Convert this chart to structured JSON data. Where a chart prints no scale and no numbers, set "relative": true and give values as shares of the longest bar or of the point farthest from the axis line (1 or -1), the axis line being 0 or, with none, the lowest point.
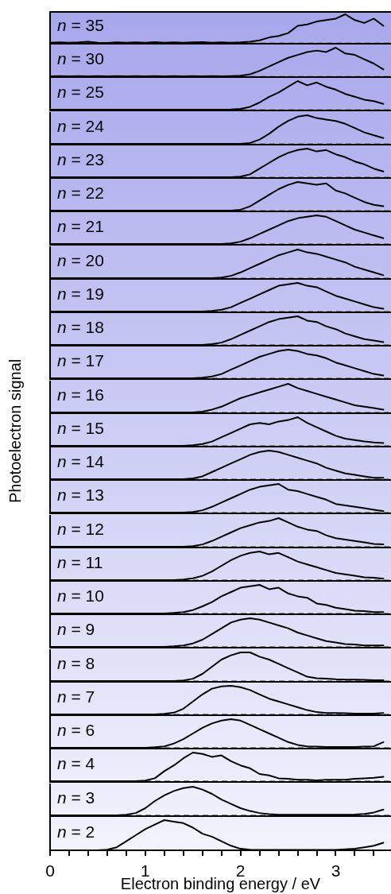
{
  "chart_data": [
    {
      "type": "line",
      "annotations": [
        "n = 35"
      ],
      "x": [
        0,
        0.1,
        0.2,
        0.3,
        0.4,
        0.5,
        0.6,
        0.7,
        0.8,
        0.9,
        1,
        1.1,
        1.2,
        1.3,
        1.4,
        1.5,
        1.6,
        1.7,
        1.8,
        1.9,
        2,
        2.1,
        2.2,
        2.3,
        2.4,
        2.5,
        2.6,
        2.7,
        2.8,
        2.9,
        3,
        3.1,
        3.2,
        3.3,
        3.4,
        3.5
      ],
      "values": [
        0.02,
        0.03,
        0.02,
        0.03,
        0.05,
        0.02,
        0.01,
        0.03,
        0.02,
        0.03,
        0.02,
        0.04,
        0.02,
        0.03,
        0.02,
        0.03,
        0.04,
        0.02,
        0.03,
        0.02,
        0.03,
        0.05,
        0.1,
        0.2,
        0.25,
        0.35,
        0.6,
        0.65,
        0.75,
        0.8,
        0.85,
        1,
        0.8,
        0.7,
        0.85,
        0.6
      ],
      "color": "#000000",
      "relative": true,
      "xlim": [
        0,
        3.58
      ],
      "ref_lines": [
        {
          "axis": "y",
          "value": 0,
          "color": "#888888",
          "line_style": "dashed"
        }
      ],
      "tick_labels": false
    },
    {
      "type": "line",
      "annotations": [
        "n = 30"
      ],
      "x": [
        0,
        0.1,
        0.2,
        0.3,
        0.4,
        0.5,
        0.6,
        0.7,
        0.8,
        0.9,
        1,
        1.1,
        1.2,
        1.3,
        1.4,
        1.5,
        1.6,
        1.7,
        1.8,
        1.9,
        2,
        2.1,
        2.2,
        2.3,
        2.4,
        2.5,
        2.6,
        2.7,
        2.8,
        2.9,
        3,
        3.1,
        3.2,
        3.3,
        3.4,
        3.5
      ],
      "values": [
        0.01,
        0.02,
        0.01,
        0.02,
        0.01,
        0.02,
        0.01,
        0.02,
        0.01,
        0.02,
        0.01,
        0.02,
        0.01,
        0.02,
        0.01,
        0.02,
        0.01,
        0.02,
        0.01,
        0.02,
        0.03,
        0.08,
        0.2,
        0.35,
        0.5,
        0.65,
        0.75,
        0.85,
        0.9,
        0.85,
        1,
        0.8,
        0.75,
        0.6,
        0.45,
        0.25
      ],
      "color": "#000000",
      "relative": true,
      "xlim": [
        0,
        3.58
      ],
      "ref_lines": [
        {
          "axis": "y",
          "value": 0,
          "color": "#888888",
          "line_style": "dashed"
        }
      ],
      "tick_labels": false
    },
    {
      "type": "line",
      "annotations": [
        "n = 25"
      ],
      "x": [
        0,
        0.1,
        0.2,
        0.3,
        0.4,
        0.5,
        0.6,
        0.7,
        0.8,
        0.9,
        1,
        1.1,
        1.2,
        1.3,
        1.4,
        1.5,
        1.6,
        1.7,
        1.8,
        1.9,
        2,
        2.1,
        2.2,
        2.3,
        2.4,
        2.5,
        2.6,
        2.7,
        2.8,
        2.9,
        3,
        3.1,
        3.2,
        3.3,
        3.4,
        3.5
      ],
      "values": [
        0,
        0,
        0,
        0,
        0,
        0,
        0,
        0,
        0,
        0,
        0,
        0,
        0,
        0,
        0,
        0,
        0,
        0,
        0,
        0.01,
        0.03,
        0.1,
        0.25,
        0.45,
        0.6,
        0.8,
        1,
        0.85,
        0.95,
        0.8,
        0.7,
        0.55,
        0.45,
        0.35,
        0.3,
        0.2
      ],
      "color": "#000000",
      "relative": true,
      "xlim": [
        0,
        3.58
      ],
      "ref_lines": [
        {
          "axis": "y",
          "value": 0,
          "color": "#888888",
          "line_style": "dashed"
        }
      ],
      "tick_labels": false
    },
    {
      "type": "line",
      "annotations": [
        "n = 24"
      ],
      "x": [
        0,
        0.1,
        0.2,
        0.3,
        0.4,
        0.5,
        0.6,
        0.7,
        0.8,
        0.9,
        1,
        1.1,
        1.2,
        1.3,
        1.4,
        1.5,
        1.6,
        1.7,
        1.8,
        1.9,
        2,
        2.1,
        2.2,
        2.3,
        2.4,
        2.5,
        2.6,
        2.7,
        2.8,
        2.9,
        3,
        3.1,
        3.2,
        3.3,
        3.4,
        3.5
      ],
      "values": [
        0,
        0,
        0,
        0,
        0,
        0,
        0,
        0,
        0,
        0,
        0,
        0,
        0,
        0,
        0,
        0,
        0,
        0,
        0,
        0,
        0,
        0.03,
        0.15,
        0.35,
        0.6,
        0.8,
        0.95,
        1,
        0.9,
        0.85,
        0.8,
        0.7,
        0.55,
        0.4,
        0.3,
        0.2
      ],
      "color": "#000000",
      "relative": true,
      "xlim": [
        0,
        3.58
      ],
      "ref_lines": [
        {
          "axis": "y",
          "value": 0,
          "color": "#888888",
          "line_style": "dashed"
        }
      ],
      "tick_labels": false
    },
    {
      "type": "line",
      "annotations": [
        "n = 23"
      ],
      "x": [
        0,
        0.1,
        0.2,
        0.3,
        0.4,
        0.5,
        0.6,
        0.7,
        0.8,
        0.9,
        1,
        1.1,
        1.2,
        1.3,
        1.4,
        1.5,
        1.6,
        1.7,
        1.8,
        1.9,
        2,
        2.1,
        2.2,
        2.3,
        2.4,
        2.5,
        2.6,
        2.7,
        2.8,
        2.9,
        3,
        3.1,
        3.2,
        3.3,
        3.4,
        3.5
      ],
      "values": [
        0,
        0,
        0,
        0,
        0,
        0,
        0,
        0,
        0,
        0,
        0,
        0,
        0,
        0,
        0,
        0,
        0,
        0,
        0,
        0,
        0.02,
        0.1,
        0.3,
        0.5,
        0.7,
        0.85,
        0.95,
        1,
        0.9,
        0.95,
        0.8,
        0.7,
        0.55,
        0.45,
        0.3,
        0.2
      ],
      "color": "#000000",
      "relative": true,
      "xlim": [
        0,
        3.58
      ],
      "ref_lines": [
        {
          "axis": "y",
          "value": 0,
          "color": "#888888",
          "line_style": "dashed"
        }
      ],
      "tick_labels": false
    },
    {
      "type": "line",
      "annotations": [
        "n = 22"
      ],
      "x": [
        0,
        0.1,
        0.2,
        0.3,
        0.4,
        0.5,
        0.6,
        0.7,
        0.8,
        0.9,
        1,
        1.1,
        1.2,
        1.3,
        1.4,
        1.5,
        1.6,
        1.7,
        1.8,
        1.9,
        2,
        2.1,
        2.2,
        2.3,
        2.4,
        2.5,
        2.6,
        2.7,
        2.8,
        2.9,
        3,
        3.1,
        3.2,
        3.3,
        3.4,
        3.5
      ],
      "values": [
        0,
        0,
        0,
        0,
        0,
        0,
        0,
        0,
        0,
        0,
        0,
        0,
        0,
        0,
        0,
        0,
        0,
        0,
        0,
        0,
        0.03,
        0.15,
        0.35,
        0.55,
        0.75,
        0.9,
        1,
        0.95,
        0.9,
        0.95,
        0.7,
        0.6,
        0.45,
        0.3,
        0.2,
        0.15
      ],
      "color": "#000000",
      "relative": true,
      "xlim": [
        0,
        3.58
      ],
      "ref_lines": [
        {
          "axis": "y",
          "value": 0,
          "color": "#888888",
          "line_style": "dashed"
        }
      ],
      "tick_labels": false
    },
    {
      "type": "line",
      "annotations": [
        "n = 21"
      ],
      "x": [
        0,
        0.1,
        0.2,
        0.3,
        0.4,
        0.5,
        0.6,
        0.7,
        0.8,
        0.9,
        1,
        1.1,
        1.2,
        1.3,
        1.4,
        1.5,
        1.6,
        1.7,
        1.8,
        1.9,
        2,
        2.1,
        2.2,
        2.3,
        2.4,
        2.5,
        2.6,
        2.7,
        2.8,
        2.9,
        3,
        3.1,
        3.2,
        3.3,
        3.4,
        3.5
      ],
      "values": [
        0,
        0,
        0,
        0,
        0,
        0,
        0,
        0,
        0,
        0,
        0,
        0,
        0,
        0,
        0,
        0,
        0,
        0,
        0,
        0.02,
        0.08,
        0.2,
        0.35,
        0.5,
        0.65,
        0.8,
        0.9,
        0.95,
        1,
        0.95,
        0.8,
        0.65,
        0.5,
        0.4,
        0.3,
        0.2
      ],
      "color": "#000000",
      "relative": true,
      "xlim": [
        0,
        3.58
      ],
      "ref_lines": [
        {
          "axis": "y",
          "value": 0,
          "color": "#888888",
          "line_style": "dashed"
        }
      ],
      "tick_labels": false
    },
    {
      "type": "line",
      "annotations": [
        "n = 20"
      ],
      "x": [
        0,
        0.1,
        0.2,
        0.3,
        0.4,
        0.5,
        0.6,
        0.7,
        0.8,
        0.9,
        1,
        1.1,
        1.2,
        1.3,
        1.4,
        1.5,
        1.6,
        1.7,
        1.8,
        1.9,
        2,
        2.1,
        2.2,
        2.3,
        2.4,
        2.5,
        2.6,
        2.7,
        2.8,
        2.9,
        3,
        3.1,
        3.2,
        3.3,
        3.4,
        3.5
      ],
      "values": [
        0,
        0,
        0,
        0,
        0,
        0,
        0,
        0,
        0,
        0,
        0,
        0,
        0,
        0,
        0,
        0,
        0,
        0,
        0.02,
        0.08,
        0.2,
        0.35,
        0.5,
        0.65,
        0.8,
        0.9,
        1,
        0.9,
        0.85,
        0.75,
        0.65,
        0.55,
        0.4,
        0.3,
        0.2,
        0.1
      ],
      "color": "#000000",
      "relative": true,
      "xlim": [
        0,
        3.58
      ],
      "ref_lines": [
        {
          "axis": "y",
          "value": 0,
          "color": "#888888",
          "line_style": "dashed"
        }
      ],
      "tick_labels": false
    },
    {
      "type": "line",
      "annotations": [
        "n = 19"
      ],
      "x": [
        0,
        0.1,
        0.2,
        0.3,
        0.4,
        0.5,
        0.6,
        0.7,
        0.8,
        0.9,
        1,
        1.1,
        1.2,
        1.3,
        1.4,
        1.5,
        1.6,
        1.7,
        1.8,
        1.9,
        2,
        2.1,
        2.2,
        2.3,
        2.4,
        2.5,
        2.6,
        2.7,
        2.8,
        2.9,
        3,
        3.1,
        3.2,
        3.3,
        3.4,
        3.5
      ],
      "values": [
        0,
        0,
        0,
        0,
        0,
        0,
        0,
        0,
        0,
        0,
        0,
        0,
        0,
        0,
        0,
        0,
        0,
        0.02,
        0.06,
        0.15,
        0.3,
        0.45,
        0.6,
        0.75,
        0.9,
        0.95,
        1,
        0.9,
        0.85,
        0.7,
        0.55,
        0.45,
        0.35,
        0.25,
        0.15,
        0.1
      ],
      "color": "#000000",
      "relative": true,
      "xlim": [
        0,
        3.58
      ],
      "ref_lines": [
        {
          "axis": "y",
          "value": 0,
          "color": "#888888",
          "line_style": "dashed"
        }
      ],
      "tick_labels": false
    },
    {
      "type": "line",
      "annotations": [
        "n = 18"
      ],
      "x": [
        0,
        0.1,
        0.2,
        0.3,
        0.4,
        0.5,
        0.6,
        0.7,
        0.8,
        0.9,
        1,
        1.1,
        1.2,
        1.3,
        1.4,
        1.5,
        1.6,
        1.7,
        1.8,
        1.9,
        2,
        2.1,
        2.2,
        2.3,
        2.4,
        2.5,
        2.6,
        2.7,
        2.8,
        2.9,
        3,
        3.1,
        3.2,
        3.3,
        3.4,
        3.5
      ],
      "values": [
        0,
        0,
        0,
        0,
        0,
        0,
        0,
        0,
        0,
        0,
        0,
        0,
        0,
        0,
        0,
        0,
        0,
        0.03,
        0.08,
        0.2,
        0.35,
        0.5,
        0.65,
        0.8,
        0.9,
        0.95,
        1,
        0.85,
        0.8,
        0.65,
        0.55,
        0.4,
        0.3,
        0.2,
        0.15,
        0.1
      ],
      "color": "#000000",
      "relative": true,
      "xlim": [
        0,
        3.58
      ],
      "ref_lines": [
        {
          "axis": "y",
          "value": 0,
          "color": "#888888",
          "line_style": "dashed"
        }
      ],
      "tick_labels": false
    },
    {
      "type": "line",
      "annotations": [
        "n = 17"
      ],
      "x": [
        0,
        0.1,
        0.2,
        0.3,
        0.4,
        0.5,
        0.6,
        0.7,
        0.8,
        0.9,
        1,
        1.1,
        1.2,
        1.3,
        1.4,
        1.5,
        1.6,
        1.7,
        1.8,
        1.9,
        2,
        2.1,
        2.2,
        2.3,
        2.4,
        2.5,
        2.6,
        2.7,
        2.8,
        2.9,
        3,
        3.1,
        3.2,
        3.3,
        3.4,
        3.5
      ],
      "values": [
        0,
        0,
        0,
        0,
        0,
        0,
        0,
        0,
        0,
        0,
        0,
        0,
        0,
        0,
        0,
        0,
        0.02,
        0.06,
        0.15,
        0.3,
        0.45,
        0.6,
        0.75,
        0.85,
        0.95,
        1,
        0.95,
        0.85,
        0.8,
        0.7,
        0.55,
        0.45,
        0.35,
        0.25,
        0.15,
        0.1
      ],
      "color": "#000000",
      "relative": true,
      "xlim": [
        0,
        3.58
      ],
      "ref_lines": [
        {
          "axis": "y",
          "value": 0,
          "color": "#888888",
          "line_style": "dashed"
        }
      ],
      "tick_labels": false
    },
    {
      "type": "line",
      "annotations": [
        "n = 16"
      ],
      "x": [
        0,
        0.1,
        0.2,
        0.3,
        0.4,
        0.5,
        0.6,
        0.7,
        0.8,
        0.9,
        1,
        1.1,
        1.2,
        1.3,
        1.4,
        1.5,
        1.6,
        1.7,
        1.8,
        1.9,
        2,
        2.1,
        2.2,
        2.3,
        2.4,
        2.5,
        2.6,
        2.7,
        2.8,
        2.9,
        3,
        3.1,
        3.2,
        3.3,
        3.4,
        3.5
      ],
      "values": [
        0,
        0,
        0,
        0,
        0,
        0,
        0,
        0,
        0,
        0,
        0,
        0,
        0,
        0,
        0,
        0,
        0.03,
        0.1,
        0.2,
        0.35,
        0.5,
        0.6,
        0.7,
        0.8,
        0.9,
        1,
        0.85,
        0.75,
        0.65,
        0.55,
        0.45,
        0.35,
        0.25,
        0.2,
        0.15,
        0.1
      ],
      "color": "#000000",
      "relative": true,
      "xlim": [
        0,
        3.58
      ],
      "ref_lines": [
        {
          "axis": "y",
          "value": 0,
          "color": "#888888",
          "line_style": "dashed"
        }
      ],
      "tick_labels": false
    },
    {
      "type": "line",
      "annotations": [
        "n = 15"
      ],
      "x": [
        0,
        0.1,
        0.2,
        0.3,
        0.4,
        0.5,
        0.6,
        0.7,
        0.8,
        0.9,
        1,
        1.1,
        1.2,
        1.3,
        1.4,
        1.5,
        1.6,
        1.7,
        1.8,
        1.9,
        2,
        2.1,
        2.2,
        2.3,
        2.4,
        2.5,
        2.6,
        2.7,
        2.8,
        2.9,
        3,
        3.1,
        3.2,
        3.3,
        3.4,
        3.5
      ],
      "values": [
        0,
        0,
        0,
        0,
        0,
        0,
        0,
        0,
        0,
        0,
        0,
        0,
        0,
        0,
        0,
        0.02,
        0.06,
        0.15,
        0.3,
        0.45,
        0.6,
        0.75,
        0.8,
        0.75,
        0.85,
        0.9,
        1,
        0.8,
        0.65,
        0.5,
        0.35,
        0.25,
        0.2,
        0.15,
        0.12,
        0.1
      ],
      "color": "#000000",
      "relative": true,
      "xlim": [
        0,
        3.58
      ],
      "ref_lines": [
        {
          "axis": "y",
          "value": 0,
          "color": "#888888",
          "line_style": "dashed"
        }
      ],
      "tick_labels": false
    },
    {
      "type": "line",
      "annotations": [
        "n = 14"
      ],
      "x": [
        0,
        0.1,
        0.2,
        0.3,
        0.4,
        0.5,
        0.6,
        0.7,
        0.8,
        0.9,
        1,
        1.1,
        1.2,
        1.3,
        1.4,
        1.5,
        1.6,
        1.7,
        1.8,
        1.9,
        2,
        2.1,
        2.2,
        2.3,
        2.4,
        2.5,
        2.6,
        2.7,
        2.8,
        2.9,
        3,
        3.1,
        3.2,
        3.3,
        3.4,
        3.5
      ],
      "values": [
        0,
        0,
        0,
        0,
        0,
        0,
        0,
        0,
        0,
        0,
        0,
        0,
        0,
        0,
        0,
        0.03,
        0.1,
        0.25,
        0.4,
        0.55,
        0.7,
        0.85,
        0.95,
        1,
        0.95,
        0.85,
        0.75,
        0.65,
        0.55,
        0.4,
        0.3,
        0.2,
        0.15,
        0.1,
        0.05,
        0.05
      ],
      "color": "#000000",
      "relative": true,
      "xlim": [
        0,
        3.58
      ],
      "ref_lines": [
        {
          "axis": "y",
          "value": 0,
          "color": "#888888",
          "line_style": "dashed"
        }
      ],
      "tick_labels": false
    },
    {
      "type": "line",
      "ylabel": "Photoelectron signal",
      "annotations": [
        "n = 13"
      ],
      "x": [
        0,
        0.1,
        0.2,
        0.3,
        0.4,
        0.5,
        0.6,
        0.7,
        0.8,
        0.9,
        1,
        1.1,
        1.2,
        1.3,
        1.4,
        1.5,
        1.6,
        1.7,
        1.8,
        1.9,
        2,
        2.1,
        2.2,
        2.3,
        2.4,
        2.5,
        2.6,
        2.7,
        2.8,
        2.9,
        3,
        3.1,
        3.2,
        3.3,
        3.4,
        3.5
      ],
      "values": [
        0,
        0,
        0,
        0,
        0,
        0,
        0,
        0,
        0,
        0,
        0,
        0,
        0,
        0,
        0,
        0.02,
        0.08,
        0.2,
        0.35,
        0.5,
        0.65,
        0.8,
        0.9,
        0.95,
        1,
        0.8,
        0.75,
        0.65,
        0.55,
        0.45,
        0.3,
        0.25,
        0.2,
        0.15,
        0.1,
        0.05
      ],
      "color": "#000000",
      "relative": true,
      "xlim": [
        0,
        3.58
      ],
      "ref_lines": [
        {
          "axis": "y",
          "value": 0,
          "color": "#888888",
          "line_style": "dashed"
        }
      ],
      "tick_labels": false
    },
    {
      "type": "line",
      "annotations": [
        "n = 12"
      ],
      "x": [
        0,
        0.1,
        0.2,
        0.3,
        0.4,
        0.5,
        0.6,
        0.7,
        0.8,
        0.9,
        1,
        1.1,
        1.2,
        1.3,
        1.4,
        1.5,
        1.6,
        1.7,
        1.8,
        1.9,
        2,
        2.1,
        2.2,
        2.3,
        2.4,
        2.5,
        2.6,
        2.7,
        2.8,
        2.9,
        3,
        3.1,
        3.2,
        3.3,
        3.4,
        3.5
      ],
      "values": [
        0,
        0,
        0,
        0,
        0,
        0,
        0,
        0,
        0,
        0,
        0,
        0,
        0,
        0,
        0,
        0.02,
        0.08,
        0.2,
        0.35,
        0.5,
        0.65,
        0.75,
        0.85,
        0.9,
        1,
        0.85,
        0.7,
        0.6,
        0.55,
        0.4,
        0.3,
        0.25,
        0.2,
        0.15,
        0.1,
        0.08
      ],
      "color": "#000000",
      "relative": true,
      "xlim": [
        0,
        3.58
      ],
      "ref_lines": [
        {
          "axis": "y",
          "value": 0,
          "color": "#888888",
          "line_style": "dashed"
        }
      ],
      "tick_labels": false
    },
    {
      "type": "line",
      "annotations": [
        "n = 11"
      ],
      "x": [
        0,
        0.1,
        0.2,
        0.3,
        0.4,
        0.5,
        0.6,
        0.7,
        0.8,
        0.9,
        1,
        1.1,
        1.2,
        1.3,
        1.4,
        1.5,
        1.6,
        1.7,
        1.8,
        1.9,
        2,
        2.1,
        2.2,
        2.3,
        2.4,
        2.5,
        2.6,
        2.7,
        2.8,
        2.9,
        3,
        3.1,
        3.2,
        3.3,
        3.4,
        3.5
      ],
      "values": [
        0,
        0,
        0,
        0,
        0,
        0,
        0,
        0,
        0,
        0,
        0,
        0,
        0,
        0,
        0.02,
        0.06,
        0.15,
        0.3,
        0.5,
        0.7,
        0.85,
        0.95,
        1,
        0.9,
        0.95,
        0.8,
        0.65,
        0.55,
        0.45,
        0.35,
        0.25,
        0.2,
        0.15,
        0.1,
        0.08,
        0.05
      ],
      "color": "#000000",
      "relative": true,
      "xlim": [
        0,
        3.58
      ],
      "ref_lines": [
        {
          "axis": "y",
          "value": 0,
          "color": "#888888",
          "line_style": "dashed"
        }
      ],
      "tick_labels": false
    },
    {
      "type": "line",
      "annotations": [
        "n = 10"
      ],
      "x": [
        0,
        0.1,
        0.2,
        0.3,
        0.4,
        0.5,
        0.6,
        0.7,
        0.8,
        0.9,
        1,
        1.1,
        1.2,
        1.3,
        1.4,
        1.5,
        1.6,
        1.7,
        1.8,
        1.9,
        2,
        2.1,
        2.2,
        2.3,
        2.4,
        2.5,
        2.6,
        2.7,
        2.8,
        2.9,
        3,
        3.1,
        3.2,
        3.3,
        3.4,
        3.5
      ],
      "values": [
        0,
        0,
        0,
        0,
        0,
        0,
        0,
        0,
        0,
        0,
        0,
        0,
        0,
        0.02,
        0.05,
        0.12,
        0.25,
        0.4,
        0.6,
        0.75,
        0.9,
        0.95,
        1,
        0.85,
        0.9,
        0.7,
        0.6,
        0.55,
        0.35,
        0.3,
        0.2,
        0.15,
        0.1,
        0.08,
        0.05,
        0.05
      ],
      "color": "#000000",
      "relative": true,
      "xlim": [
        0,
        3.58
      ],
      "ref_lines": [
        {
          "axis": "y",
          "value": 0,
          "color": "#888888",
          "line_style": "dashed"
        }
      ],
      "tick_labels": false
    },
    {
      "type": "line",
      "annotations": [
        "n = 9"
      ],
      "x": [
        0,
        0.1,
        0.2,
        0.3,
        0.4,
        0.5,
        0.6,
        0.7,
        0.8,
        0.9,
        1,
        1.1,
        1.2,
        1.3,
        1.4,
        1.5,
        1.6,
        1.7,
        1.8,
        1.9,
        2,
        2.1,
        2.2,
        2.3,
        2.4,
        2.5,
        2.6,
        2.7,
        2.8,
        2.9,
        3,
        3.1,
        3.2,
        3.3,
        3.4,
        3.5
      ],
      "values": [
        0,
        0,
        0,
        0,
        0,
        0,
        0,
        0,
        0,
        0,
        0,
        0,
        0,
        0.02,
        0.05,
        0.12,
        0.25,
        0.45,
        0.65,
        0.85,
        0.95,
        1,
        0.95,
        0.85,
        0.75,
        0.65,
        0.5,
        0.4,
        0.3,
        0.2,
        0.15,
        0.1,
        0.08,
        0.05,
        0.05,
        0.05
      ],
      "color": "#000000",
      "relative": true,
      "xlim": [
        0,
        3.58
      ],
      "ref_lines": [
        {
          "axis": "y",
          "value": 0,
          "color": "#888888",
          "line_style": "dashed"
        }
      ],
      "tick_labels": false
    },
    {
      "type": "line",
      "annotations": [
        "n = 8"
      ],
      "x": [
        0,
        0.1,
        0.2,
        0.3,
        0.4,
        0.5,
        0.6,
        0.7,
        0.8,
        0.9,
        1,
        1.1,
        1.2,
        1.3,
        1.4,
        1.5,
        1.6,
        1.7,
        1.8,
        1.9,
        2,
        2.1,
        2.2,
        2.3,
        2.4,
        2.5,
        2.6,
        2.7,
        2.8,
        2.9,
        3,
        3.1,
        3.2,
        3.3,
        3.4,
        3.5
      ],
      "values": [
        0,
        0,
        0,
        0,
        0,
        0,
        0,
        0,
        0,
        0,
        0,
        0,
        0,
        0,
        0.02,
        0.08,
        0.25,
        0.5,
        0.75,
        0.9,
        1,
        1,
        0.85,
        0.75,
        0.6,
        0.45,
        0.3,
        0.15,
        0.1,
        0.08,
        0.06,
        0.05,
        0.05,
        0.04,
        0.03,
        0.03
      ],
      "color": "#000000",
      "relative": true,
      "xlim": [
        0,
        3.58
      ],
      "ref_lines": [
        {
          "axis": "y",
          "value": 0,
          "color": "#888888",
          "line_style": "dashed"
        }
      ],
      "tick_labels": false
    },
    {
      "type": "line",
      "annotations": [
        "n = 7"
      ],
      "x": [
        0,
        0.1,
        0.2,
        0.3,
        0.4,
        0.5,
        0.6,
        0.7,
        0.8,
        0.9,
        1,
        1.1,
        1.2,
        1.3,
        1.4,
        1.5,
        1.6,
        1.7,
        1.8,
        1.9,
        2,
        2.1,
        2.2,
        2.3,
        2.4,
        2.5,
        2.6,
        2.7,
        2.8,
        2.9,
        3,
        3.1,
        3.2,
        3.3,
        3.4,
        3.5
      ],
      "values": [
        0,
        0,
        0,
        0,
        0,
        0,
        0,
        0,
        0,
        0,
        0,
        0,
        0.02,
        0.06,
        0.2,
        0.45,
        0.7,
        0.9,
        0.98,
        1,
        0.95,
        0.85,
        0.7,
        0.55,
        0.45,
        0.35,
        0.25,
        0.15,
        0.08,
        0.05,
        0.05,
        0.04,
        0.03,
        0.03,
        0.03,
        0.05
      ],
      "color": "#000000",
      "relative": true,
      "xlim": [
        0,
        3.58
      ],
      "ref_lines": [
        {
          "axis": "y",
          "value": 0,
          "color": "#888888",
          "line_style": "dashed"
        }
      ],
      "tick_labels": false
    },
    {
      "type": "line",
      "annotations": [
        "n = 6"
      ],
      "x": [
        0,
        0.1,
        0.2,
        0.3,
        0.4,
        0.5,
        0.6,
        0.7,
        0.8,
        0.9,
        1,
        1.1,
        1.2,
        1.3,
        1.4,
        1.5,
        1.6,
        1.7,
        1.8,
        1.9,
        2,
        2.1,
        2.2,
        2.3,
        2.4,
        2.5,
        2.6,
        2.7,
        2.8,
        2.9,
        3,
        3.1,
        3.2,
        3.3,
        3.4,
        3.5
      ],
      "values": [
        0,
        0,
        0,
        0,
        0,
        0,
        0,
        0,
        0,
        0,
        0,
        0.02,
        0.05,
        0.15,
        0.3,
        0.5,
        0.7,
        0.85,
        0.95,
        1,
        0.95,
        0.8,
        0.65,
        0.5,
        0.35,
        0.2,
        0.1,
        0.05,
        0.04,
        0.03,
        0.03,
        0.03,
        0.03,
        0.04,
        0.05,
        0.2
      ],
      "color": "#000000",
      "relative": true,
      "xlim": [
        0,
        3.58
      ],
      "ref_lines": [
        {
          "axis": "y",
          "value": 0,
          "color": "#888888",
          "line_style": "dashed"
        }
      ],
      "tick_labels": false
    },
    {
      "type": "line",
      "annotations": [
        "n = 4"
      ],
      "x": [
        0,
        0.1,
        0.2,
        0.3,
        0.4,
        0.5,
        0.6,
        0.7,
        0.8,
        0.9,
        1,
        1.1,
        1.2,
        1.3,
        1.4,
        1.5,
        1.6,
        1.7,
        1.8,
        1.9,
        2,
        2.1,
        2.2,
        2.3,
        2.4,
        2.5,
        2.6,
        2.7,
        2.8,
        2.9,
        3,
        3.1,
        3.2,
        3.3,
        3.4,
        3.5
      ],
      "values": [
        0,
        0,
        0,
        0,
        0,
        0,
        0,
        0,
        0,
        0,
        0.02,
        0.1,
        0.35,
        0.55,
        0.8,
        1,
        0.95,
        0.85,
        0.9,
        0.7,
        0.55,
        0.45,
        0.25,
        0.2,
        0.1,
        0.08,
        0.05,
        0.05,
        0.03,
        0.05,
        0.05,
        0.05,
        0.08,
        0.1,
        0.12,
        0.15
      ],
      "color": "#000000",
      "relative": true,
      "xlim": [
        0,
        3.58
      ],
      "ref_lines": [
        {
          "axis": "y",
          "value": 0,
          "color": "#888888",
          "line_style": "dashed"
        }
      ],
      "tick_labels": false
    },
    {
      "type": "line",
      "annotations": [
        "n = 3"
      ],
      "x": [
        0,
        0.1,
        0.2,
        0.3,
        0.4,
        0.5,
        0.6,
        0.7,
        0.8,
        0.9,
        1,
        1.1,
        1.2,
        1.3,
        1.4,
        1.5,
        1.6,
        1.7,
        1.8,
        1.9,
        2,
        2.1,
        2.2,
        2.3,
        2.4,
        2.5,
        2.6,
        2.7,
        2.8,
        2.9,
        3,
        3.1,
        3.2,
        3.3,
        3.4,
        3.5
      ],
      "values": [
        0,
        0,
        0,
        0,
        0,
        0,
        0,
        0,
        0.02,
        0.08,
        0.25,
        0.5,
        0.7,
        0.85,
        0.95,
        1,
        0.9,
        0.75,
        0.55,
        0.4,
        0.25,
        0.15,
        0.08,
        0.04,
        0.02,
        0.02,
        0.02,
        0.02,
        0.02,
        0.02,
        0.02,
        0.02,
        0.03,
        0.05,
        0.1,
        0.2
      ],
      "color": "#000000",
      "relative": true,
      "xlim": [
        0,
        3.58
      ],
      "ref_lines": [
        {
          "axis": "y",
          "value": 0,
          "color": "#888888",
          "line_style": "dashed"
        }
      ],
      "tick_labels": false
    },
    {
      "type": "line",
      "annotations": [
        "n = 2"
      ],
      "x": [
        0,
        0.1,
        0.2,
        0.3,
        0.4,
        0.5,
        0.6,
        0.7,
        0.8,
        0.9,
        1,
        1.1,
        1.2,
        1.3,
        1.4,
        1.5,
        1.6,
        1.7,
        1.8,
        1.9,
        2,
        2.1,
        2.2,
        2.3,
        2.4,
        2.5,
        2.6,
        2.7,
        2.8,
        2.9,
        3,
        3.1,
        3.2,
        3.3,
        3.4,
        3.5
      ],
      "values": [
        0,
        0,
        0,
        0,
        0,
        0,
        0.02,
        0.1,
        0.3,
        0.5,
        0.7,
        0.85,
        1,
        0.95,
        0.9,
        0.75,
        0.55,
        0.45,
        0.3,
        0.15,
        0.05,
        0.02,
        0.01,
        0.01,
        0.01,
        0.01,
        0.01,
        0.01,
        0.01,
        0.01,
        0.01,
        0.03,
        0.05,
        0.1,
        0.15,
        0.25
      ],
      "color": "#000000",
      "relative": true,
      "xlim": [
        0,
        3.58
      ],
      "xticks": [
        0,
        {
          "value": 0.2,
          "label": null
        },
        {
          "value": 0.4,
          "label": null
        },
        {
          "value": 0.6,
          "label": null
        },
        {
          "value": 0.8,
          "label": null
        },
        1,
        {
          "value": 1.2,
          "label": null
        },
        {
          "value": 1.4,
          "label": null
        },
        {
          "value": 1.6,
          "label": null
        },
        {
          "value": 1.8,
          "label": null
        },
        2,
        {
          "value": 2.2,
          "label": null
        },
        {
          "value": 2.4,
          "label": null
        },
        {
          "value": 2.6,
          "label": null
        },
        {
          "value": 2.8,
          "label": null
        },
        3,
        {
          "value": 3.2,
          "label": null
        },
        {
          "value": 3.4,
          "label": null
        }
      ],
      "xlabel": "Electron binding energy / eV",
      "tick_labels": "x"
    }
  ]
}
